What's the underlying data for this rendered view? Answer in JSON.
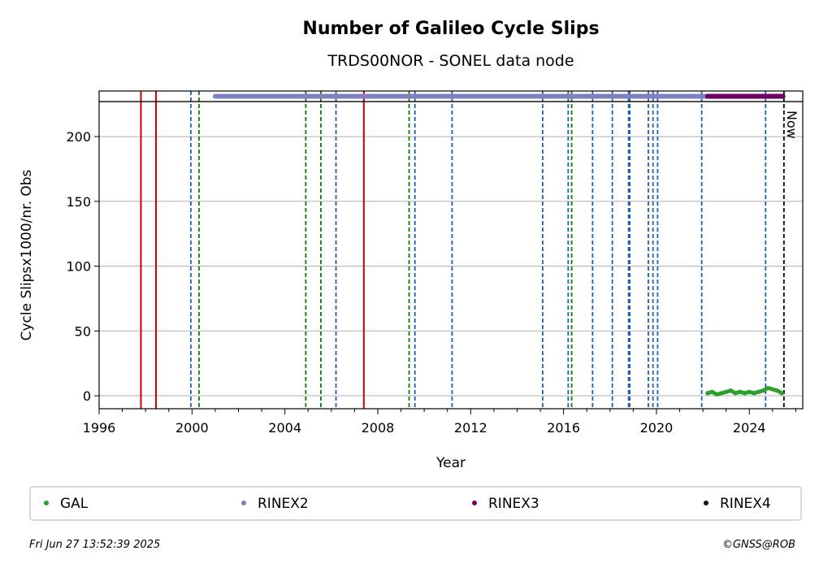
{
  "chart_data": {
    "type": "scatter",
    "title": "Number of Galileo Cycle Slips",
    "subtitle": "TRDS00NOR - SONEL data node",
    "xlabel": "Year",
    "ylabel": "Cycle Slipsx1000/nr. Obs",
    "xlim": [
      1996,
      2026.3
    ],
    "ylim": [
      -10,
      227
    ],
    "xticks": [
      1996,
      2000,
      2004,
      2008,
      2012,
      2016,
      2020,
      2024
    ],
    "yticks": [
      0,
      50,
      100,
      150,
      200
    ],
    "grid": "y",
    "now_label": "Now",
    "now_year": 2025.49,
    "red_lines": [
      1997.8,
      1998.45,
      2007.4
    ],
    "blue_dashed_lines": [
      1999.95,
      2006.2,
      2009.6,
      2011.2,
      2015.1,
      2016.2,
      2017.25,
      2018.1,
      2018.8,
      2018.85,
      2019.65,
      2019.85,
      2020.05,
      2021.95,
      2024.7
    ],
    "green_dashed_lines": [
      2000.3,
      2004.9,
      2005.55,
      2009.35,
      2016.35
    ],
    "rinex_bars": [
      {
        "name": "RINEX2",
        "color": "#8080c0",
        "start": 2001.0,
        "end": 2022.2
      },
      {
        "name": "RINEX3",
        "color": "#6a0060",
        "start": 2022.2,
        "end": 2025.45
      }
    ],
    "series": [
      {
        "name": "GAL",
        "color": "#2ca02c",
        "x": [
          2022.2,
          2022.4,
          2022.6,
          2022.8,
          2023.0,
          2023.2,
          2023.4,
          2023.6,
          2023.8,
          2024.0,
          2024.2,
          2024.4,
          2024.6,
          2024.8,
          2025.0,
          2025.2,
          2025.4
        ],
        "y": [
          2,
          3,
          1,
          2,
          3,
          4,
          2,
          3,
          2,
          3,
          2,
          3,
          4,
          6,
          5,
          4,
          2
        ]
      }
    ]
  },
  "legend": [
    {
      "label": "GAL",
      "color": "#2ca02c"
    },
    {
      "label": "RINEX2",
      "color": "#8080c0"
    },
    {
      "label": "RINEX3",
      "color": "#6a0060"
    },
    {
      "label": "RINEX4",
      "color": "#1a0a1a"
    }
  ],
  "footer": {
    "timestamp": "Fri Jun 27 13:52:39 2025",
    "credit": "©GNSS@ROB"
  }
}
